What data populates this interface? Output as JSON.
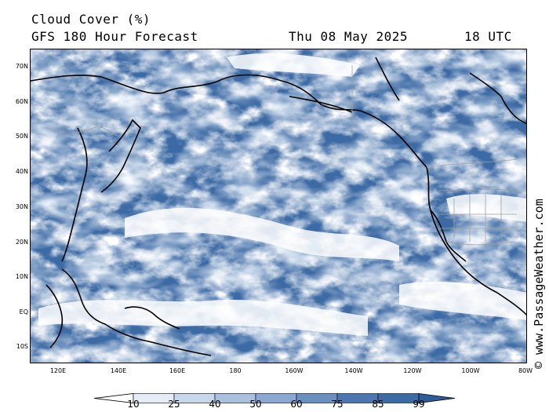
{
  "header": {
    "title": "Cloud Cover (%)",
    "subtitle": "GFS 180 Hour Forecast",
    "date": "Thu 08 May 2025",
    "time": "18 UTC"
  },
  "watermark": "© www.PassageWeather.com",
  "map": {
    "latitude_labels": [
      "70N",
      "60N",
      "50N",
      "40N",
      "30N",
      "20N",
      "10N",
      "EQ",
      "10S"
    ],
    "longitude_labels": [
      "120E",
      "140E",
      "160E",
      "180",
      "160W",
      "140W",
      "120W",
      "100W",
      "80W"
    ],
    "colors": {
      "ocean_cloud_low": "#3c6aa4",
      "cloud_high": "#ffffff",
      "coastline": "#000000",
      "borders": "#a0a0a0"
    }
  },
  "legend": {
    "labels": [
      "10",
      "25",
      "40",
      "50",
      "60",
      "75",
      "85",
      "99"
    ],
    "colors": [
      "#ffffff",
      "#e4ecf6",
      "#c7d7ec",
      "#a9c0df",
      "#8aa8d1",
      "#6a8fc1",
      "#4c76b0",
      "#3c6aa4"
    ]
  }
}
